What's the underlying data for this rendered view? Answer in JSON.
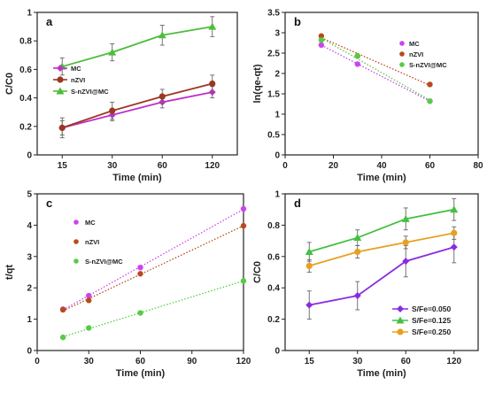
{
  "chart_data": [
    {
      "panel": "a",
      "type": "line",
      "x": [
        "15",
        "30",
        "60",
        "120"
      ],
      "xlabel": "Time (min)",
      "ylabel": "C/C0",
      "ylim": [
        0,
        1
      ],
      "yticks": [
        "0",
        "0.2",
        "0.4",
        "0.6",
        "0.8",
        "1"
      ],
      "legend_position": "center-left",
      "error_bars": true,
      "series": [
        {
          "name": "MC",
          "values": [
            0.19,
            0.28,
            0.37,
            0.44
          ],
          "errors": [
            0.05,
            0.04,
            0.04,
            0.04
          ],
          "color": "#c030c8",
          "marker": "diamond"
        },
        {
          "name": "nZVI",
          "values": [
            0.19,
            0.31,
            0.41,
            0.5
          ],
          "errors": [
            0.07,
            0.06,
            0.05,
            0.06
          ],
          "color": "#9a3820",
          "marker": "circle"
        },
        {
          "name": "S-nZVI@MC",
          "values": [
            0.62,
            0.72,
            0.84,
            0.9
          ],
          "errors": [
            0.06,
            0.06,
            0.07,
            0.07
          ],
          "color": "#4cbe3a",
          "marker": "triangle"
        }
      ]
    },
    {
      "panel": "b",
      "type": "scatter",
      "xlabel": "Time (min)",
      "ylabel": "ln(qe-qt)",
      "xlim": [
        0,
        80
      ],
      "ylim": [
        0,
        3.5
      ],
      "xticks": [
        "0",
        "20",
        "40",
        "60",
        "80"
      ],
      "yticks": [
        "0",
        "0.5",
        "1",
        "1.5",
        "2",
        "2.5",
        "3",
        "3.5"
      ],
      "legend_position": "top-right",
      "trendlines": "dotted",
      "series": [
        {
          "name": "MC",
          "x": [
            15,
            30,
            60
          ],
          "values": [
            2.7,
            2.23,
            1.32
          ],
          "color": "#cc44ee"
        },
        {
          "name": "nZVI",
          "x": [
            15,
            30,
            60
          ],
          "values": [
            2.92,
            2.43,
            1.73
          ],
          "color": "#b84a1e"
        },
        {
          "name": "S-nZVI@MC",
          "x": [
            15,
            30,
            60
          ],
          "values": [
            2.82,
            2.43,
            1.32
          ],
          "color": "#55cc44"
        }
      ]
    },
    {
      "panel": "c",
      "type": "scatter",
      "xlabel": "Time (min)",
      "ylabel": "t/qt",
      "xlim": [
        0,
        120
      ],
      "ylim": [
        0,
        5
      ],
      "xticks": [
        "0",
        "30",
        "60",
        "90",
        "120"
      ],
      "yticks": [
        "0",
        "1",
        "2",
        "3",
        "4",
        "5"
      ],
      "legend_position": "top-left",
      "trendlines": "dotted",
      "series": [
        {
          "name": "MC",
          "x": [
            15,
            30,
            60,
            120
          ],
          "values": [
            1.32,
            1.75,
            2.65,
            4.52
          ],
          "color": "#cc44ee"
        },
        {
          "name": "nZVI",
          "x": [
            15,
            30,
            60,
            120
          ],
          "values": [
            1.3,
            1.6,
            2.45,
            3.98
          ],
          "color": "#b84a1e"
        },
        {
          "name": "S-nZVI@MC",
          "x": [
            15,
            30,
            60,
            120
          ],
          "values": [
            0.42,
            0.72,
            1.2,
            2.22
          ],
          "color": "#55cc44"
        }
      ]
    },
    {
      "panel": "d",
      "type": "line",
      "x": [
        "15",
        "30",
        "60",
        "120"
      ],
      "xlabel": "Time (min)",
      "ylabel": "C/C0",
      "ylim": [
        0,
        1
      ],
      "yticks": [
        "0",
        "0.2",
        "0.4",
        "0.6",
        "0.8",
        "1"
      ],
      "legend_position": "bottom-right",
      "error_bars": true,
      "series": [
        {
          "name": "S/Fe=0.050",
          "values": [
            0.29,
            0.35,
            0.57,
            0.66
          ],
          "errors": [
            0.09,
            0.09,
            0.1,
            0.1
          ],
          "color": "#8a2be2",
          "marker": "diamond"
        },
        {
          "name": "S/Fe=0.125",
          "values": [
            0.63,
            0.72,
            0.84,
            0.9
          ],
          "errors": [
            0.06,
            0.05,
            0.07,
            0.07
          ],
          "color": "#44c044",
          "marker": "triangle"
        },
        {
          "name": "S/Fe=0.250",
          "values": [
            0.54,
            0.63,
            0.69,
            0.75
          ],
          "errors": [
            0.04,
            0.04,
            0.04,
            0.04
          ],
          "color": "#e8a020",
          "marker": "circle"
        }
      ]
    }
  ]
}
